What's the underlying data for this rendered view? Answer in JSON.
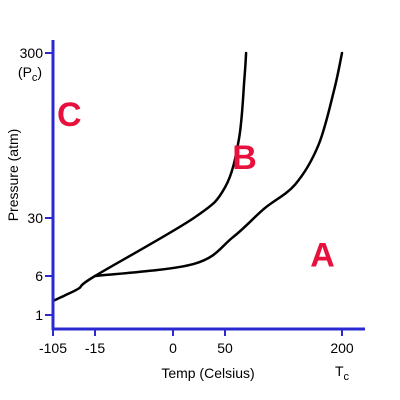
{
  "chart_data": {
    "type": "line",
    "title": "",
    "xlabel": "Temp (Celsius)",
    "ylabel": "Pressure (atm)",
    "x_ticks": [
      {
        "value": -105,
        "label": "-105"
      },
      {
        "value": -15,
        "label": "-15"
      },
      {
        "value": 0,
        "label": "0"
      },
      {
        "value": 50,
        "label": "50"
      },
      {
        "value": 200,
        "label": "200",
        "sublabel": "T",
        "sublabel_sub": "c"
      }
    ],
    "y_ticks": [
      {
        "value": 1,
        "label": "1"
      },
      {
        "value": 6,
        "label": "6"
      },
      {
        "value": 30,
        "label": "30"
      },
      {
        "value": 300,
        "label": "300",
        "sublabel": "(P",
        "sublabel_sub": "c",
        "sublabel_end": ")"
      }
    ],
    "regions": [
      {
        "label": "C",
        "x": -70,
        "y": 200
      },
      {
        "label": "B",
        "x": 75,
        "y": 130
      },
      {
        "label": "A",
        "x": 175,
        "y": 15
      }
    ],
    "series": [
      {
        "x": [
          -105,
          -80,
          -50,
          -15,
          20,
          50,
          68,
          75,
          77
        ],
        "y": [
          2.8,
          3.5,
          4.4,
          6,
          30,
          80,
          160,
          260,
          300
        ]
      },
      {
        "x": [
          -15,
          20,
          60,
          100,
          140,
          170,
          190,
          200
        ],
        "y": [
          6,
          11,
          22,
          45,
          85,
          150,
          240,
          300
        ]
      }
    ],
    "colors": {
      "axis": "#2a2ad0",
      "curve": "#000000",
      "region_label": "#e8103c"
    }
  }
}
